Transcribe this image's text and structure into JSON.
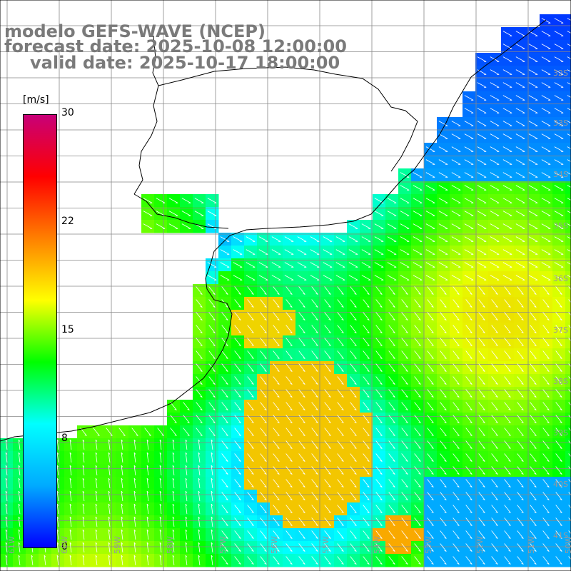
{
  "header": {
    "line1": "modelo GEFS-WAVE (NCEP)",
    "line2": "forecast date: 2025-10-08 12:00:00",
    "line3": "valid date: 2025-10-17 18:00:00"
  },
  "colorbar": {
    "unit": "[m/s]",
    "ticks": [
      "30",
      "22",
      "15",
      "8",
      "0"
    ],
    "stops": [
      "#0000ff",
      "#00aaff",
      "#00ffff",
      "#00ff00",
      "#ffff00",
      "#ff8000",
      "#ff0000",
      "#c80078"
    ]
  },
  "axes": {
    "lat_labels": [
      "32S",
      "33S",
      "34S",
      "35S",
      "36S",
      "37S",
      "38S",
      "39S",
      "40S",
      "41S"
    ],
    "lon_labels": [
      "61W",
      "60W",
      "59W",
      "58W",
      "57W",
      "56W",
      "55W",
      "54W",
      "53W",
      "52W",
      "51W",
      "50W"
    ]
  },
  "map_data": {
    "field": "wind speed (m/s) with direction arrows",
    "dominant_direction": "southwestward flow",
    "max_wind": 18
  }
}
